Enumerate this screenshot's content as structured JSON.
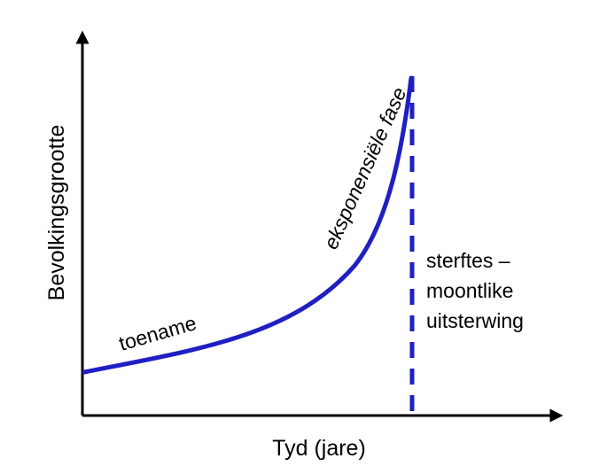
{
  "diagram": {
    "x_axis_label": "Tyd (jare)",
    "y_axis_label": "Bevolkingsgrootte",
    "labels": {
      "growth": "toename",
      "exponential": "eksponensiële fase",
      "death_line1": "sterftes –",
      "death_line2": "moontlike",
      "death_line3": "uitsterwing"
    },
    "colors": {
      "axis": "#000000",
      "curve": "#1f1fc4",
      "text": "#000000"
    }
  }
}
